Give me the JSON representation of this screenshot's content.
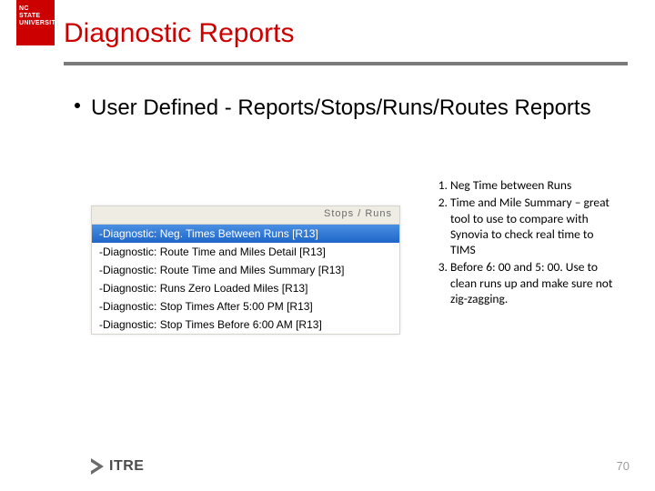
{
  "logo": {
    "line1": "NC STATE",
    "line2": "UNIVERSITY"
  },
  "title": "Diagnostic Reports",
  "bullet_heading": "User Defined - Reports/Stops/Runs/Routes Reports",
  "panel": {
    "header": "Stops / Runs",
    "rows": [
      {
        "label": "-Diagnostic: Neg. Times Between Runs [R13]",
        "selected": true
      },
      {
        "label": "-Diagnostic: Route Time and Miles Detail [R13]",
        "selected": false
      },
      {
        "label": "-Diagnostic: Route Time and Miles Summary [R13]",
        "selected": false
      },
      {
        "label": "-Diagnostic: Runs Zero Loaded Miles [R13]",
        "selected": false
      },
      {
        "label": "-Diagnostic: Stop Times After 5:00 PM [R13]",
        "selected": false
      },
      {
        "label": "-Diagnostic: Stop Times Before 6:00 AM [R13]",
        "selected": false
      }
    ]
  },
  "notes": [
    "Neg Time between Runs",
    "Time and Mile Summary – great tool to use to compare with Synovia to check real time to TIMS",
    "Before 6: 00 and 5: 00.  Use to clean runs up and make sure not zig-zagging."
  ],
  "footer": {
    "itre": "ITRE",
    "page": "70"
  },
  "colors": {
    "brand_red": "#cc0000",
    "rule_gray": "#7a7a7a",
    "select_blue": "#3e7ed6",
    "page_gray": "#9c9c9c"
  }
}
